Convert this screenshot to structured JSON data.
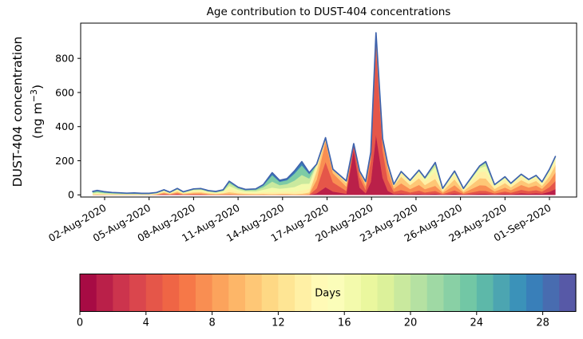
{
  "title": "Age contribution to DUST-404 concentrations",
  "ylabel": {
    "line1": "DUST-404 concentration",
    "units_prefix": "(ng m",
    "units_exponent": "−3",
    "units_suffix": ")"
  },
  "chart_data": {
    "type": "area",
    "stacked": true,
    "title": "Age contribution to DUST-404 concentrations",
    "ylabel": "DUST-404 concentration (ng m⁻³)",
    "xlabel": "",
    "grid": false,
    "yticks": [
      0,
      200,
      400,
      600,
      800
    ],
    "ylim": [
      -13,
      1007
    ],
    "xtick_labels": [
      "02-Aug-2020",
      "05-Aug-2020",
      "08-Aug-2020",
      "11-Aug-2020",
      "14-Aug-2020",
      "17-Aug-2020",
      "20-Aug-2020",
      "23-Aug-2020",
      "26-Aug-2020",
      "29-Aug-2020",
      "01-Sep-2020"
    ],
    "xtick_day_offsets": [
      1,
      4,
      7,
      10,
      13,
      16,
      19,
      22,
      25,
      28,
      31
    ],
    "x_day0_date": "01-Aug-2020",
    "samples_fields": [
      "days_since_01-Aug-2020",
      "total_concentration_ng_m3",
      "mean_dust_age_days",
      "age_spread_days"
    ],
    "samples": [
      [
        0.2,
        20,
        19,
        6
      ],
      [
        0.5,
        26,
        19,
        6
      ],
      [
        1,
        18,
        19,
        6
      ],
      [
        1.5,
        14,
        19,
        6
      ],
      [
        2,
        12,
        19,
        6
      ],
      [
        2.5,
        10,
        19,
        6
      ],
      [
        3,
        11,
        19,
        6
      ],
      [
        3.5,
        9,
        19,
        6
      ],
      [
        4,
        9,
        18,
        6
      ],
      [
        4.5,
        14,
        15,
        7
      ],
      [
        5,
        30,
        11,
        7
      ],
      [
        5.4,
        16,
        12,
        7
      ],
      [
        5.9,
        38,
        11,
        7
      ],
      [
        6.3,
        18,
        13,
        7
      ],
      [
        7,
        35,
        13,
        6
      ],
      [
        7.5,
        37,
        13,
        6
      ],
      [
        8,
        25,
        14,
        6
      ],
      [
        8.5,
        20,
        15,
        6
      ],
      [
        9,
        30,
        15,
        6
      ],
      [
        9.4,
        80,
        16,
        5
      ],
      [
        10,
        45,
        16,
        5
      ],
      [
        10.5,
        32,
        16,
        5
      ],
      [
        11.2,
        35,
        17,
        5
      ],
      [
        11.7,
        60,
        18,
        5
      ],
      [
        12.3,
        130,
        20,
        4.5
      ],
      [
        12.8,
        85,
        19,
        5
      ],
      [
        13.3,
        95,
        19,
        5
      ],
      [
        13.8,
        140,
        20,
        4.5
      ],
      [
        14.3,
        195,
        20,
        4.5
      ],
      [
        14.8,
        130,
        18,
        5
      ],
      [
        15.3,
        180,
        9,
        4
      ],
      [
        15.9,
        335,
        5.5,
        2.5
      ],
      [
        16.4,
        150,
        6,
        3
      ],
      [
        17.3,
        82,
        8,
        4
      ],
      [
        17.8,
        300,
        1.5,
        1.5
      ],
      [
        18.2,
        140,
        4,
        3
      ],
      [
        18.6,
        78,
        7,
        4
      ],
      [
        18.95,
        250,
        4,
        2.5
      ],
      [
        19.3,
        950,
        3.5,
        2
      ],
      [
        19.75,
        330,
        4,
        2.5
      ],
      [
        20.1,
        180,
        6,
        3
      ],
      [
        20.5,
        62,
        8,
        4
      ],
      [
        21,
        137,
        9,
        4
      ],
      [
        21.6,
        85,
        10,
        4.5
      ],
      [
        22.2,
        145,
        10,
        4.5
      ],
      [
        22.6,
        100,
        11,
        5
      ],
      [
        23.3,
        190,
        12,
        5.5
      ],
      [
        23.8,
        38,
        11,
        5
      ],
      [
        24.6,
        140,
        10,
        5
      ],
      [
        25.2,
        38,
        11,
        5
      ],
      [
        26.3,
        170,
        11,
        5
      ],
      [
        26.7,
        195,
        12,
        5.5
      ],
      [
        27.3,
        60,
        11,
        5
      ],
      [
        28,
        106,
        10,
        5
      ],
      [
        28.4,
        68,
        10,
        5
      ],
      [
        29.1,
        121,
        9,
        5
      ],
      [
        29.6,
        90,
        9,
        5
      ],
      [
        30.1,
        114,
        9,
        5
      ],
      [
        30.5,
        76,
        9,
        5.5
      ],
      [
        31,
        150,
        8,
        6
      ],
      [
        31.4,
        225,
        7,
        6
      ]
    ],
    "age_band_edges_days": [
      0,
      3,
      6,
      9,
      12,
      15,
      18,
      21,
      25,
      30
    ],
    "total_line_color": "#3f63ad",
    "colormap_name": "Spectral (0 = fresh red, 30 = aged blue)",
    "colormap_anchors": [
      "#9e0142",
      "#d53e4f",
      "#f46d43",
      "#fdae61",
      "#fee08b",
      "#ffffbf",
      "#e6f598",
      "#abdda4",
      "#66c2a5",
      "#3288bd",
      "#5e4fa2"
    ],
    "colorbar": {
      "label": "Days",
      "range": [
        0,
        30
      ],
      "segments": 30,
      "ticks": [
        0,
        4,
        8,
        12,
        16,
        20,
        24,
        28
      ]
    }
  }
}
